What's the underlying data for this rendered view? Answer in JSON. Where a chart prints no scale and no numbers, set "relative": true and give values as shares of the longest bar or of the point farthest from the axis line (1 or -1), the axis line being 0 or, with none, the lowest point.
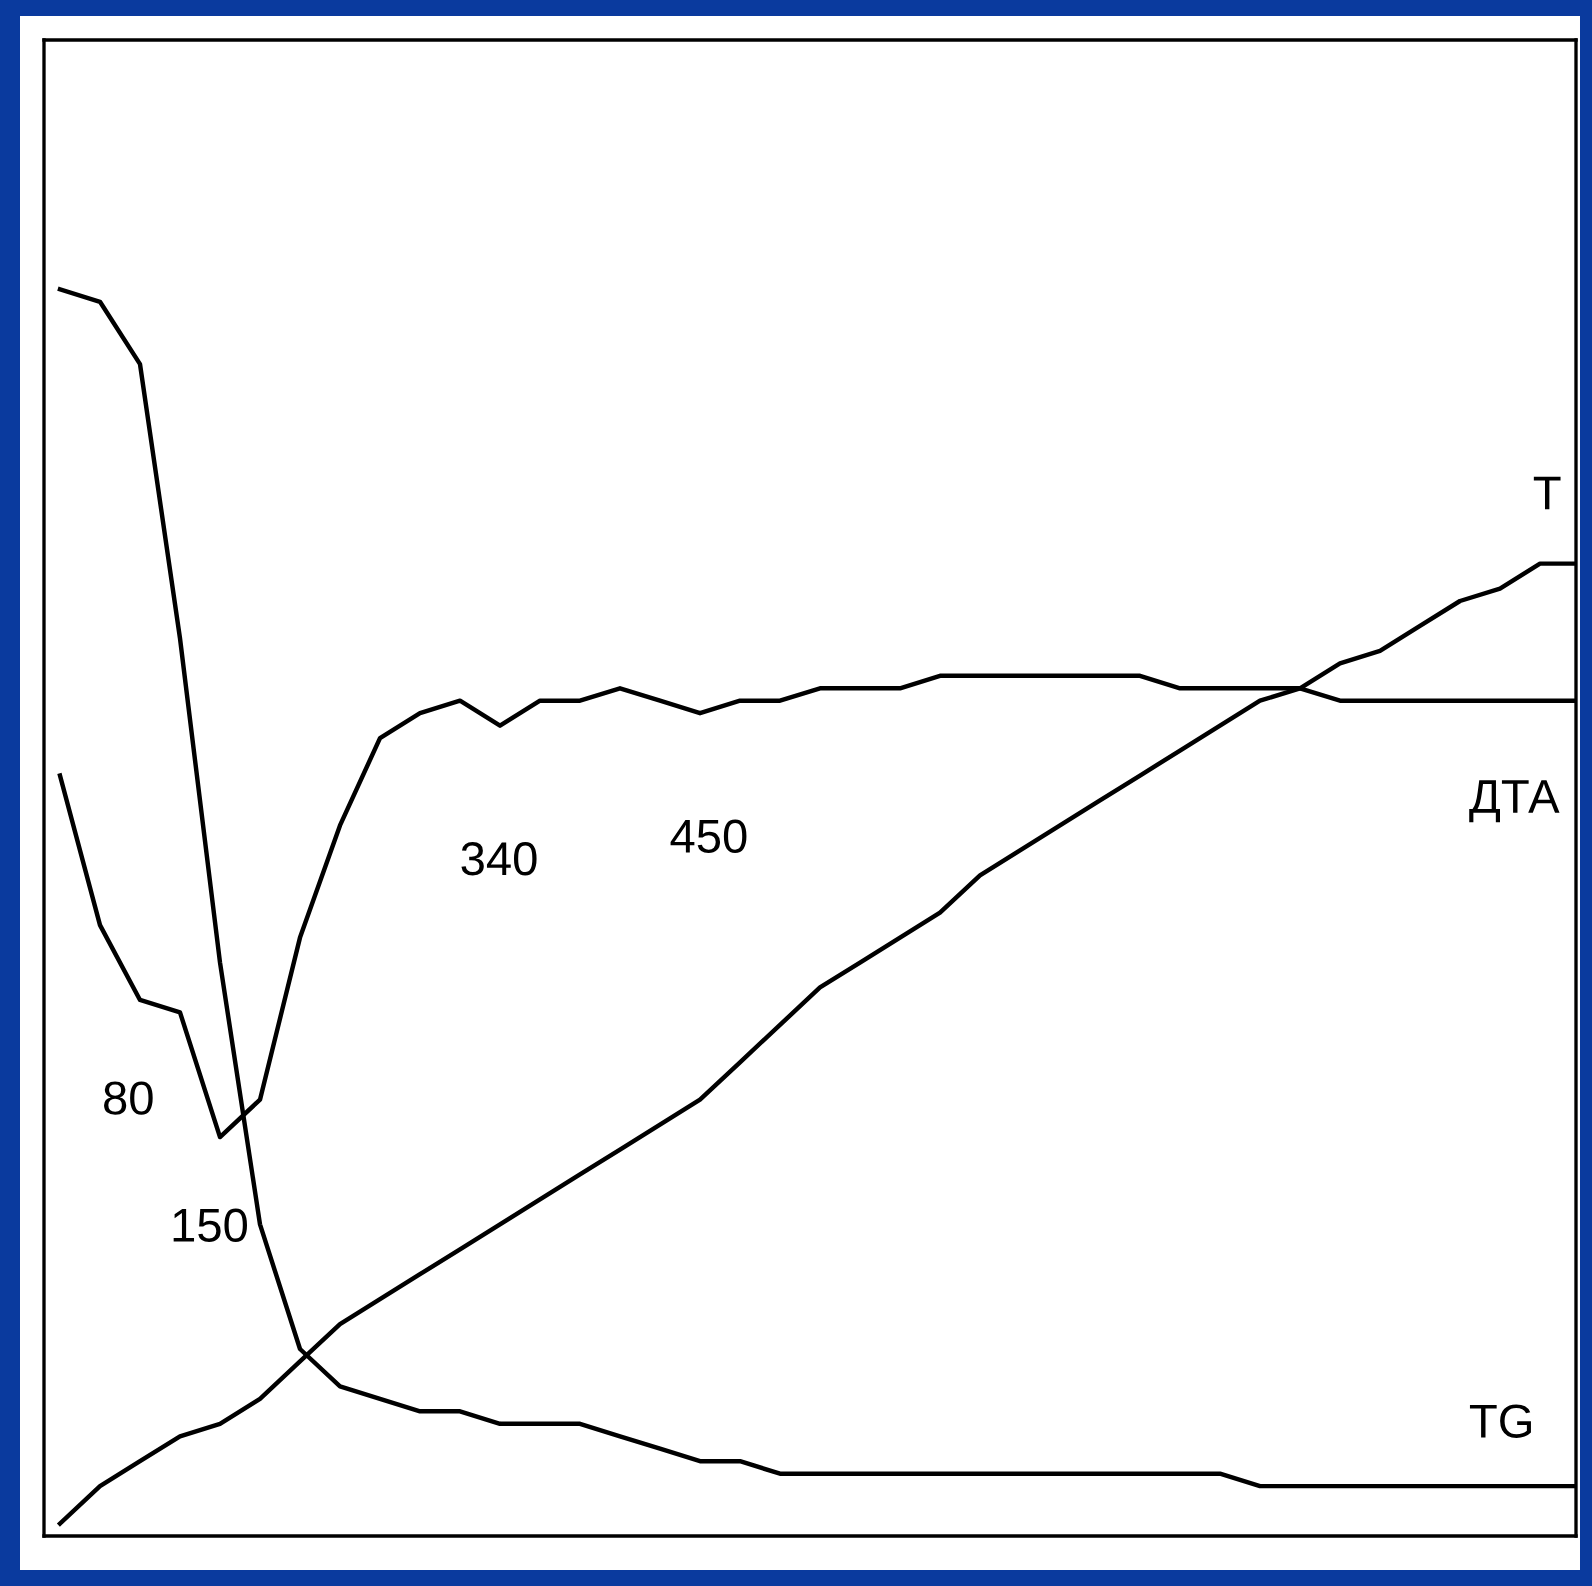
{
  "chart_data": {
    "type": "line",
    "relative": true,
    "categories": [
      null,
      null,
      null,
      null,
      null,
      null,
      null,
      null,
      null,
      null,
      null,
      null,
      null,
      null,
      null,
      null,
      null,
      null,
      null,
      null,
      null,
      null,
      null,
      null,
      null,
      null,
      null,
      null,
      null,
      null,
      null,
      null,
      null,
      null,
      null,
      null,
      null,
      null,
      null
    ],
    "series": [
      {
        "name": "T",
        "color": "#000000",
        "values": [
          0.01,
          0.04,
          0.06,
          0.08,
          0.09,
          0.11,
          0.14,
          0.17,
          0.19,
          0.21,
          0.23,
          0.25,
          0.27,
          0.29,
          0.31,
          0.33,
          0.35,
          0.38,
          0.41,
          0.44,
          0.46,
          0.48,
          0.5,
          0.53,
          0.55,
          0.57,
          0.59,
          0.61,
          0.63,
          0.65,
          0.67,
          0.68,
          0.7,
          0.71,
          0.73,
          0.75,
          0.76,
          0.78,
          0.78
        ]
      },
      {
        "name": "ДТА",
        "color": "#000000",
        "values": [
          0.61,
          0.49,
          0.43,
          0.42,
          0.32,
          0.35,
          0.48,
          0.57,
          0.64,
          0.66,
          0.67,
          0.65,
          0.67,
          0.67,
          0.68,
          0.67,
          0.66,
          0.67,
          0.67,
          0.68,
          0.68,
          0.68,
          0.69,
          0.69,
          0.69,
          0.69,
          0.69,
          0.69,
          0.68,
          0.68,
          0.68,
          0.68,
          0.67,
          0.67,
          0.67,
          0.67,
          0.67,
          0.67,
          0.67
        ]
      },
      {
        "name": "TG",
        "color": "#000000",
        "values": [
          1.0,
          0.99,
          0.94,
          0.72,
          0.46,
          0.25,
          0.15,
          0.12,
          0.11,
          0.1,
          0.1,
          0.09,
          0.09,
          0.09,
          0.08,
          0.07,
          0.06,
          0.06,
          0.05,
          0.05,
          0.05,
          0.05,
          0.05,
          0.05,
          0.05,
          0.05,
          0.05,
          0.05,
          0.05,
          0.05,
          0.04,
          0.04,
          0.04,
          0.04,
          0.04,
          0.04,
          0.04,
          0.04,
          0.04
        ]
      }
    ],
    "annotations": [
      "80",
      "150",
      "340",
      "450"
    ],
    "grid": false,
    "legend": false,
    "marker": "none",
    "line_style": "solid",
    "tick_labels": false
  }
}
